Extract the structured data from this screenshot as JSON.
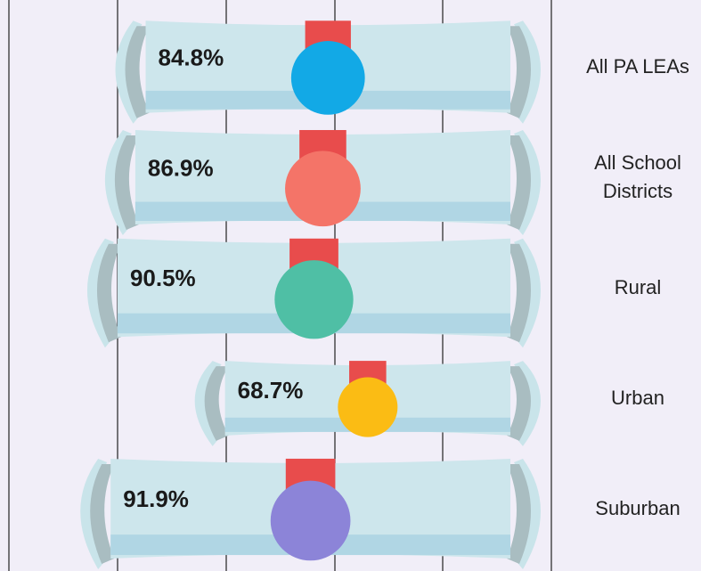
{
  "chart_data": {
    "type": "bar",
    "categories": [
      "All PA LEAs",
      "All School Districts",
      "Rural",
      "Urban",
      "Suburban"
    ],
    "values": [
      84.8,
      86.9,
      90.5,
      68.7,
      91.9
    ],
    "value_labels": [
      "84.8%",
      "86.9%",
      "90.5%",
      "68.7%",
      "91.9%"
    ],
    "colors": [
      "#12a9e6",
      "#f47468",
      "#4fbfa5",
      "#fbbc14",
      "#8c84d8"
    ],
    "xlim": [
      0,
      110
    ]
  }
}
